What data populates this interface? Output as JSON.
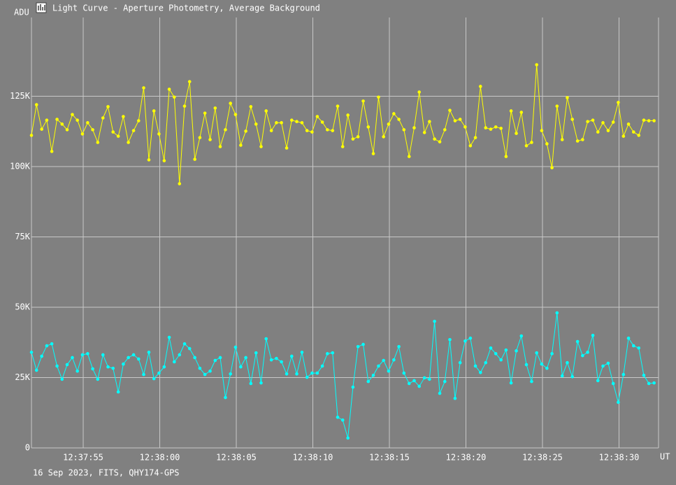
{
  "chart_data": {
    "type": "line",
    "title": "Light Curve - Aperture Photometry, Average Background",
    "ylabel": "ADU",
    "xlabel": "UT",
    "footer": "16 Sep 2023, FITS, QHY174-GPS",
    "grid": true,
    "xlim": [
      51.62,
      92.58
    ],
    "ylim": [
      0,
      153000
    ],
    "xticks": [
      {
        "value": 55,
        "label": "12:37:55"
      },
      {
        "value": 60,
        "label": "12:38:00"
      },
      {
        "value": 65,
        "label": "12:38:05"
      },
      {
        "value": 70,
        "label": "12:38:10"
      },
      {
        "value": 75,
        "label": "12:38:15"
      },
      {
        "value": 80,
        "label": "12:38:20"
      },
      {
        "value": 85,
        "label": "12:38:25"
      },
      {
        "value": 90,
        "label": "12:38:30"
      }
    ],
    "yticks": [
      0,
      {
        "value": 25000,
        "label": "25K"
      },
      {
        "value": 50000,
        "label": "50K"
      },
      {
        "value": 75000,
        "label": "75K"
      },
      {
        "value": 100000,
        "label": "100K"
      },
      {
        "value": 125000,
        "label": "125K"
      }
    ],
    "x": [
      51.62,
      51.95,
      52.29,
      52.62,
      52.95,
      53.29,
      53.62,
      53.95,
      54.29,
      54.62,
      54.95,
      55.29,
      55.62,
      55.95,
      56.29,
      56.62,
      56.95,
      57.29,
      57.62,
      57.95,
      58.29,
      58.62,
      58.95,
      59.29,
      59.62,
      59.95,
      60.29,
      60.62,
      60.95,
      61.29,
      61.62,
      61.95,
      62.29,
      62.62,
      62.95,
      63.29,
      63.62,
      63.95,
      64.29,
      64.62,
      64.95,
      65.29,
      65.62,
      65.95,
      66.29,
      66.62,
      66.95,
      67.29,
      67.62,
      67.95,
      68.29,
      68.62,
      68.95,
      69.29,
      69.62,
      69.95,
      70.29,
      70.62,
      70.95,
      71.29,
      71.62,
      71.95,
      72.29,
      72.62,
      72.95,
      73.29,
      73.62,
      73.95,
      74.29,
      74.62,
      74.95,
      75.29,
      75.62,
      75.95,
      76.29,
      76.62,
      76.95,
      77.29,
      77.62,
      77.95,
      78.29,
      78.62,
      78.95,
      79.29,
      79.62,
      79.95,
      80.29,
      80.62,
      80.95,
      81.29,
      81.62,
      81.95,
      82.29,
      82.62,
      82.95,
      83.29,
      83.62,
      83.95,
      84.29,
      84.62,
      84.95,
      85.29,
      85.62,
      85.95,
      86.29,
      86.62,
      86.95,
      87.29,
      87.62,
      87.95,
      88.29,
      88.62,
      88.95,
      89.29,
      89.62,
      89.95,
      90.29,
      90.62,
      90.95,
      91.29,
      91.62,
      91.95,
      92.29
    ],
    "series": [
      {
        "color": "#ffff00",
        "values": [
          111100,
          122000,
          113300,
          116500,
          105400,
          116800,
          115100,
          113100,
          118500,
          116500,
          111600,
          115600,
          113100,
          108600,
          117300,
          121300,
          112300,
          110800,
          117800,
          108600,
          112800,
          116300,
          128000,
          102400,
          119800,
          111600,
          102100,
          127500,
          124700,
          93900,
          121500,
          130200,
          102600,
          110300,
          119000,
          109600,
          120800,
          107100,
          113100,
          122500,
          118500,
          107600,
          112600,
          121300,
          115100,
          107100,
          119800,
          112800,
          115600,
          115600,
          106600,
          116500,
          116000,
          115600,
          112800,
          112300,
          117800,
          115800,
          113100,
          112800,
          121500,
          107100,
          118300,
          109800,
          110600,
          123300,
          114100,
          104600,
          124700,
          110600,
          115100,
          118800,
          116800,
          113100,
          103600,
          113800,
          126500,
          112100,
          116000,
          109800,
          108800,
          113100,
          120000,
          116300,
          116800,
          114100,
          107400,
          110300,
          128500,
          113800,
          113300,
          114100,
          113600,
          103600,
          119800,
          111800,
          119300,
          107400,
          108600,
          136200,
          112800,
          108100,
          99600,
          121500,
          109600,
          124500,
          116800,
          109100,
          109600,
          116000,
          116500,
          112300,
          115600,
          112800,
          115800,
          122800,
          110800,
          115100,
          112300,
          111100,
          116500,
          116300,
          116300
        ]
      },
      {
        "color": "#00ffff",
        "values": [
          34000,
          27600,
          32600,
          36300,
          37000,
          29100,
          24400,
          29600,
          32100,
          27300,
          33100,
          33500,
          28100,
          24400,
          33100,
          28800,
          28300,
          19900,
          29800,
          32100,
          33100,
          31600,
          26100,
          34000,
          24600,
          26600,
          28800,
          39300,
          30600,
          33100,
          37000,
          35300,
          32100,
          28300,
          26100,
          27300,
          31100,
          32100,
          17900,
          26300,
          35800,
          28800,
          32100,
          22900,
          33800,
          23100,
          38800,
          31300,
          31800,
          30600,
          26300,
          32600,
          26300,
          34000,
          25100,
          26600,
          26600,
          29100,
          33500,
          33800,
          10900,
          9900,
          3500,
          21600,
          36000,
          36800,
          23600,
          25800,
          29100,
          31100,
          27300,
          31300,
          36000,
          26600,
          22900,
          23900,
          21900,
          24900,
          24400,
          45000,
          19400,
          23600,
          38500,
          17600,
          30300,
          38000,
          39000,
          29100,
          26800,
          30300,
          35500,
          33500,
          31300,
          34800,
          23100,
          34500,
          39800,
          29600,
          23600,
          33800,
          29800,
          28300,
          33500,
          48000,
          25600,
          30300,
          25300,
          37800,
          32800,
          34000,
          40000,
          23900,
          29100,
          30100,
          22900,
          16200,
          26100,
          39000,
          36300,
          35500,
          25800,
          22900,
          23100
        ]
      }
    ]
  }
}
